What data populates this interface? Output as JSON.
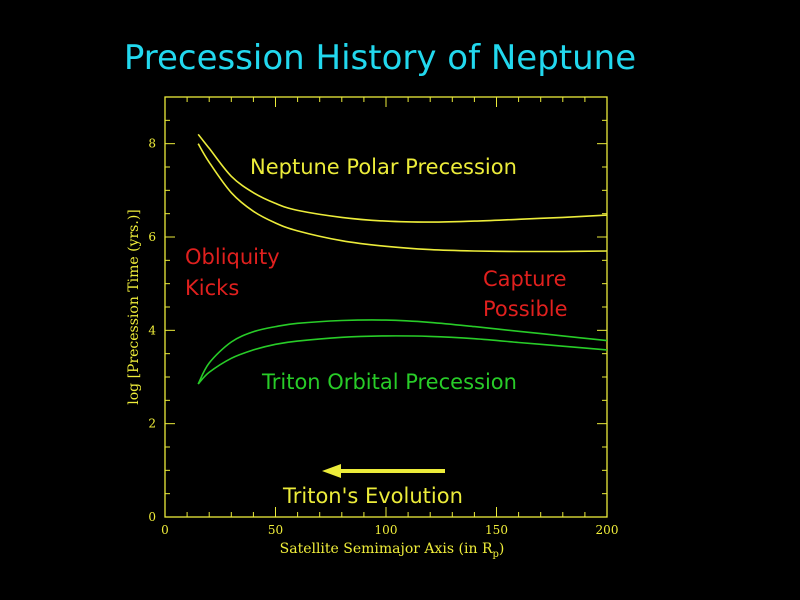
{
  "title": "Precession History of Neptune",
  "chart_data": {
    "type": "line",
    "xlabel": "Satellite Semimajor Axis (in R",
    "xlabel_sub": "p",
    "xlabel_close": ")",
    "ylabel": "log [Precession Time (yrs.)]",
    "xlim": [
      0,
      200
    ],
    "ylim": [
      0,
      9.0
    ],
    "x_ticks": [
      0,
      50,
      100,
      150,
      200
    ],
    "y_ticks": [
      0,
      2,
      4,
      6,
      8
    ],
    "grid": false,
    "series": [
      {
        "color": "#ecec3a",
        "x": [
          15,
          20,
          30,
          40,
          50,
          60,
          80,
          100,
          120,
          140,
          160,
          180,
          200
        ],
        "y": [
          8.2,
          7.9,
          7.3,
          6.95,
          6.72,
          6.57,
          6.42,
          6.34,
          6.32,
          6.34,
          6.38,
          6.42,
          6.47
        ]
      },
      {
        "color": "#ecec3a",
        "x": [
          15,
          20,
          30,
          40,
          50,
          60,
          80,
          100,
          120,
          140,
          160,
          180,
          200
        ],
        "y": [
          8.0,
          7.6,
          6.95,
          6.55,
          6.3,
          6.13,
          5.92,
          5.8,
          5.73,
          5.7,
          5.69,
          5.69,
          5.7
        ]
      },
      {
        "color": "#28cc28",
        "x": [
          15,
          20,
          30,
          40,
          50,
          60,
          80,
          100,
          120,
          140,
          160,
          180,
          200
        ],
        "y": [
          2.85,
          3.3,
          3.75,
          3.97,
          4.08,
          4.15,
          4.21,
          4.22,
          4.17,
          4.08,
          3.98,
          3.88,
          3.78
        ]
      },
      {
        "color": "#28cc28",
        "x": [
          15,
          20,
          30,
          40,
          50,
          60,
          80,
          100,
          120,
          140,
          160,
          180,
          200
        ],
        "y": [
          2.85,
          3.1,
          3.4,
          3.58,
          3.7,
          3.77,
          3.85,
          3.88,
          3.87,
          3.82,
          3.74,
          3.66,
          3.58
        ]
      }
    ],
    "annotations": [
      {
        "text": "Neptune Polar Precession",
        "color": "#ecec3a"
      },
      {
        "text": "Obliquity",
        "color": "#e0201e"
      },
      {
        "text": "Kicks",
        "color": "#e0201e"
      },
      {
        "text": "Capture",
        "color": "#e0201e"
      },
      {
        "text": "Possible",
        "color": "#e0201e"
      },
      {
        "text": "Triton Orbital Precession",
        "color": "#28cc28"
      },
      {
        "text": "Triton's Evolution",
        "color": "#ecec3a"
      }
    ],
    "arrow": {
      "direction": "left",
      "color": "#ecec3a"
    }
  }
}
